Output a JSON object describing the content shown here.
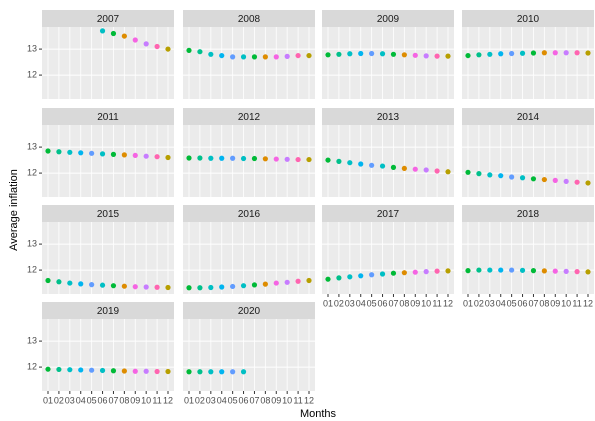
{
  "chart_data": {
    "type": "scatter",
    "xlabel": "Months",
    "ylabel": "Average inflation",
    "categories": [
      "01",
      "02",
      "03",
      "04",
      "05",
      "06",
      "07",
      "08",
      "09",
      "10",
      "11",
      "12"
    ],
    "colors": [
      "#00BA38",
      "#00C08B",
      "#00BFC4",
      "#00B4F0",
      "#619CFF",
      "#00BFC4",
      "#00BA38",
      "#DE8C00",
      "#F564E3",
      "#C77CFF",
      "#FF64B0",
      "#B79F00"
    ],
    "ylim": [
      11.08,
      13.85
    ],
    "yticks": [
      12,
      13
    ],
    "grid": true,
    "panels": [
      {
        "title": "2007",
        "values": [
          null,
          null,
          null,
          null,
          null,
          13.7,
          13.6,
          13.5,
          13.35,
          13.2,
          13.1,
          13.0
        ]
      },
      {
        "title": "2008",
        "values": [
          12.95,
          12.9,
          12.8,
          12.75,
          12.7,
          12.7,
          12.7,
          12.7,
          12.7,
          12.72,
          12.75,
          12.75
        ]
      },
      {
        "title": "2009",
        "values": [
          12.78,
          12.8,
          12.82,
          12.83,
          12.83,
          12.82,
          12.8,
          12.78,
          12.76,
          12.74,
          12.73,
          12.73
        ]
      },
      {
        "title": "2010",
        "values": [
          12.75,
          12.78,
          12.8,
          12.82,
          12.83,
          12.84,
          12.85,
          12.86,
          12.86,
          12.86,
          12.86,
          12.85
        ]
      },
      {
        "title": "2011",
        "values": [
          12.85,
          12.82,
          12.8,
          12.78,
          12.76,
          12.74,
          12.72,
          12.7,
          12.68,
          12.65,
          12.63,
          12.6
        ]
      },
      {
        "title": "2012",
        "values": [
          12.58,
          12.58,
          12.57,
          12.57,
          12.57,
          12.56,
          12.56,
          12.55,
          12.54,
          12.53,
          12.52,
          12.52
        ]
      },
      {
        "title": "2013",
        "values": [
          12.5,
          12.45,
          12.4,
          12.35,
          12.3,
          12.27,
          12.22,
          12.18,
          12.15,
          12.12,
          12.08,
          12.05
        ]
      },
      {
        "title": "2014",
        "values": [
          12.03,
          11.98,
          11.93,
          11.9,
          11.85,
          11.82,
          11.78,
          11.75,
          11.72,
          11.68,
          11.65,
          11.62
        ]
      },
      {
        "title": "2015",
        "values": [
          11.6,
          11.55,
          11.5,
          11.47,
          11.44,
          11.42,
          11.4,
          11.38,
          11.36,
          11.35,
          11.34,
          11.33
        ]
      },
      {
        "title": "2016",
        "values": [
          11.32,
          11.32,
          11.33,
          11.35,
          11.37,
          11.4,
          11.43,
          11.46,
          11.5,
          11.53,
          11.57,
          11.6
        ]
      },
      {
        "title": "2017",
        "values": [
          11.65,
          11.7,
          11.74,
          11.78,
          11.82,
          11.85,
          11.88,
          11.9,
          11.92,
          11.94,
          11.96,
          11.97
        ]
      },
      {
        "title": "2018",
        "values": [
          11.98,
          12.0,
          12.0,
          12.0,
          12.0,
          11.99,
          11.98,
          11.97,
          11.96,
          11.95,
          11.94,
          11.93
        ]
      },
      {
        "title": "2019",
        "values": [
          11.92,
          11.91,
          11.9,
          11.89,
          11.88,
          11.87,
          11.86,
          11.85,
          11.84,
          11.84,
          11.83,
          11.83
        ]
      },
      {
        "title": "2020",
        "values": [
          11.82,
          11.82,
          11.82,
          11.82,
          11.82,
          11.82,
          null,
          null,
          null,
          null,
          null,
          null
        ]
      }
    ]
  }
}
